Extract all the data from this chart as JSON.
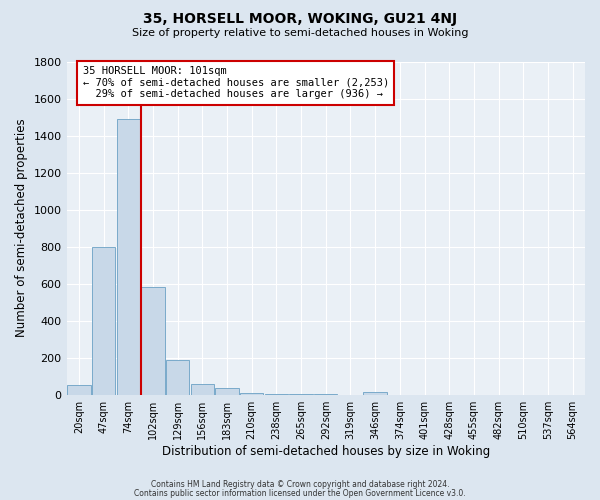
{
  "title": "35, HORSELL MOOR, WOKING, GU21 4NJ",
  "subtitle": "Size of property relative to semi-detached houses in Woking",
  "xlabel": "Distribution of semi-detached houses by size in Woking",
  "ylabel": "Number of semi-detached properties",
  "bin_labels": [
    "20sqm",
    "47sqm",
    "74sqm",
    "102sqm",
    "129sqm",
    "156sqm",
    "183sqm",
    "210sqm",
    "238sqm",
    "265sqm",
    "292sqm",
    "319sqm",
    "346sqm",
    "374sqm",
    "401sqm",
    "428sqm",
    "455sqm",
    "482sqm",
    "510sqm",
    "537sqm",
    "564sqm"
  ],
  "bar_heights": [
    55,
    800,
    1490,
    580,
    190,
    60,
    38,
    8,
    5,
    2,
    2,
    1,
    15,
    0,
    0,
    0,
    0,
    0,
    0,
    0,
    0
  ],
  "bar_color": "#c8d8e8",
  "bar_edge_color": "#7aaaca",
  "property_line_color": "#cc0000",
  "annotation_line1": "35 HORSELL MOOR: 101sqm",
  "annotation_line2": "← 70% of semi-detached houses are smaller (2,253)",
  "annotation_line3": "  29% of semi-detached houses are larger (936) →",
  "annotation_box_color": "#ffffff",
  "annotation_box_edge": "#cc0000",
  "ylim": [
    0,
    1800
  ],
  "yticks": [
    0,
    200,
    400,
    600,
    800,
    1000,
    1200,
    1400,
    1600,
    1800
  ],
  "bg_color": "#dce6f0",
  "plot_bg_color": "#eaf0f6",
  "footer_line1": "Contains HM Land Registry data © Crown copyright and database right 2024.",
  "footer_line2": "Contains public sector information licensed under the Open Government Licence v3.0."
}
